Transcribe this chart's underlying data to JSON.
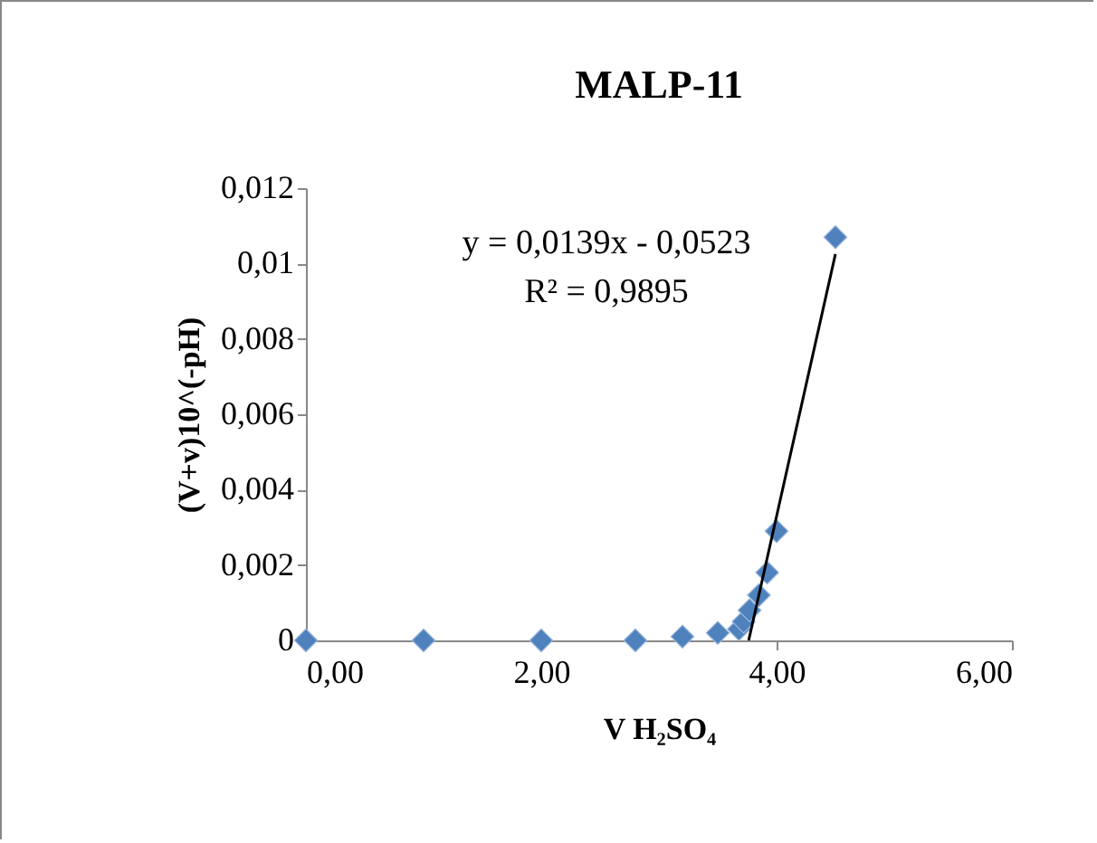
{
  "chart_data": {
    "type": "scatter",
    "title": "MALP-11",
    "xlabel": "V H₂SO₄",
    "ylabel": "(V+v)10^(-pH)",
    "series": [
      {
        "color": "#4f81bd",
        "marker": "diamond",
        "x": [
          0,
          1,
          2,
          2.8,
          3.2,
          3.5,
          3.68,
          3.72,
          3.77,
          3.85,
          3.92,
          4.0,
          4.5
        ],
        "values": [
          0,
          0,
          0,
          0,
          0.0001,
          0.0002,
          0.0003,
          0.0005,
          0.0008,
          0.0012,
          0.0018,
          0.0029,
          0.0107
        ]
      },
      {
        "type": "line",
        "color": "#000000",
        "line_style": "solid",
        "x": [
          3.763,
          4.5
        ],
        "values": [
          0,
          0.01025
        ]
      }
    ],
    "annotations": [
      "y = 0,0139x - 0,0523",
      "R² = 0,9895"
    ],
    "xlim": [
      0,
      6
    ],
    "xticks": [
      {
        "value": 0,
        "label": "0,00"
      },
      {
        "value": 2,
        "label": "2,00"
      },
      {
        "value": 4,
        "label": "4,00"
      },
      {
        "value": 6,
        "label": "6,00"
      }
    ],
    "ylim": [
      0,
      0.012
    ],
    "yticks": [
      0,
      {
        "value": 0.002,
        "label": "0,002"
      },
      {
        "value": 0.004,
        "label": "0,004"
      },
      {
        "value": 0.006,
        "label": "0,006"
      },
      {
        "value": 0.008,
        "label": "0,008"
      },
      {
        "value": 0.01,
        "label": "0,01"
      },
      {
        "value": 0.012,
        "label": "0,012"
      }
    ],
    "grid": false
  }
}
